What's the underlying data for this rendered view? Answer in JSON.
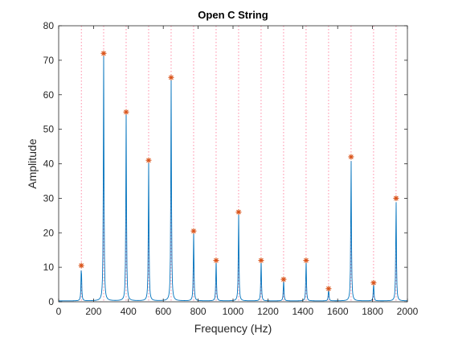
{
  "chart_data": {
    "type": "line",
    "title": "Open C String",
    "xlabel": "Frequency (Hz)",
    "ylabel": "Amplitude",
    "xlim": [
      0,
      2000
    ],
    "ylim": [
      0,
      80
    ],
    "x_ticks": [
      0,
      200,
      400,
      600,
      800,
      1000,
      1200,
      1400,
      1600,
      1800,
      2000
    ],
    "y_ticks": [
      0,
      10,
      20,
      30,
      40,
      50,
      60,
      70,
      80
    ],
    "grid": false,
    "series": [
      {
        "style": "spectrum",
        "color": "#0072BD",
        "x": [
          130,
          258,
          387,
          516,
          645,
          774,
          903,
          1032,
          1161,
          1290,
          1419,
          1548,
          1677,
          1806,
          1935
        ],
        "y": [
          10.5,
          72,
          55,
          41,
          65,
          20.5,
          12,
          26,
          12,
          6.5,
          12,
          3.8,
          42,
          5.5,
          30
        ]
      },
      {
        "style": "peak-markers",
        "marker": "*",
        "color": "#D95319",
        "x": [
          130,
          258,
          387,
          516,
          645,
          774,
          903,
          1032,
          1161,
          1290,
          1419,
          1548,
          1677,
          1806,
          1935
        ],
        "y": [
          10.5,
          72,
          55,
          41,
          65,
          20.5,
          12,
          26,
          12,
          6.5,
          12,
          3.8,
          42,
          5.5,
          30
        ]
      },
      {
        "style": "harmonic-guides",
        "line": "dotted",
        "color": "#FF6F91",
        "x": [
          130,
          258,
          387,
          516,
          645,
          774,
          903,
          1032,
          1161,
          1290,
          1419,
          1548,
          1677,
          1806,
          1935
        ]
      }
    ]
  }
}
